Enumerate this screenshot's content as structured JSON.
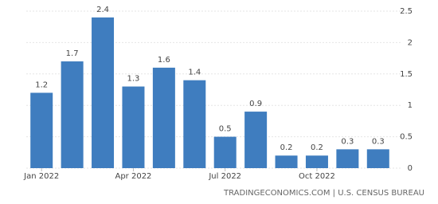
{
  "chart_data": {
    "type": "bar",
    "categories": [
      "Jan 2022",
      null,
      null,
      "Apr 2022",
      null,
      null,
      "Jul 2022",
      null,
      null,
      "Oct 2022",
      null,
      null
    ],
    "values": [
      1.2,
      1.7,
      2.4,
      1.3,
      1.6,
      1.4,
      0.5,
      0.9,
      0.2,
      0.2,
      0.3,
      0.3
    ],
    "color": "#3f7dbf",
    "ylim": [
      0,
      2.5
    ],
    "yticks": [
      0,
      0.5,
      1,
      1.5,
      2,
      2.5
    ],
    "grid": true,
    "source": "TRADINGECONOMICS.COM | U.S. CENSUS BUREAU"
  }
}
